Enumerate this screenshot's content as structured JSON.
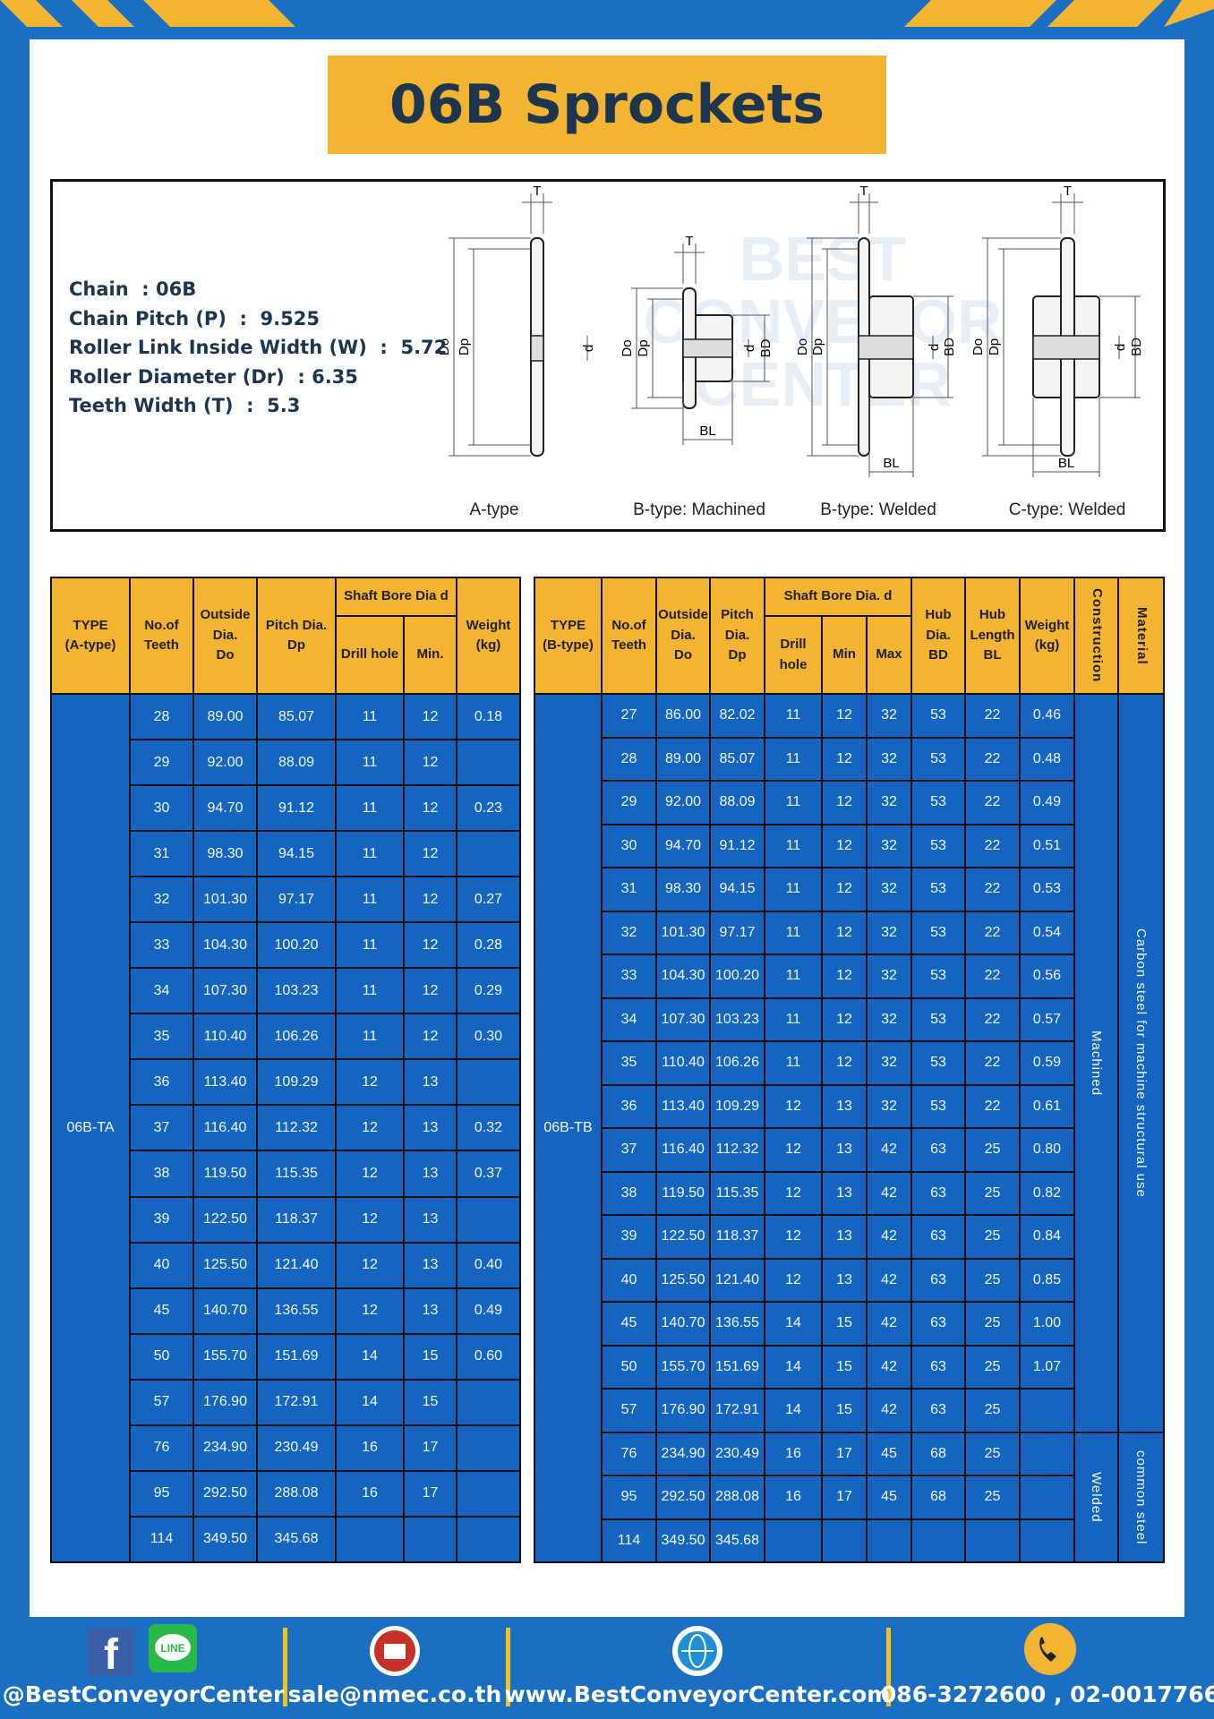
{
  "header": {
    "title": "06B Sprockets"
  },
  "specs": [
    "Chain  : 06B",
    "Chain Pitch (P)  :  9.525",
    "Roller Link Inside Width (W)  :  5.72",
    "Roller Diameter (Dr)  : 6.35",
    "Teeth Width (T)  :  5.3"
  ],
  "watermark": [
    "BEST",
    "CONVEYOR",
    "CENTER"
  ],
  "diagrams": [
    {
      "caption": "A-type",
      "labels": [
        "T",
        "Do",
        "Dp",
        "d"
      ]
    },
    {
      "caption": "B-type: Machined",
      "labels": [
        "T",
        "Do",
        "Dp",
        "d",
        "BD",
        "BL"
      ]
    },
    {
      "caption": "B-type: Welded",
      "labels": [
        "T",
        "Do",
        "Dp",
        "d",
        "BD",
        "BL"
      ]
    },
    {
      "caption": "C-type: Welded",
      "labels": [
        "T",
        "Do",
        "Dp",
        "d",
        "BD",
        "BL"
      ]
    }
  ],
  "table_a": {
    "columns": [
      [
        "TYPE",
        "(A-type)"
      ],
      [
        "No.of",
        "Teeth"
      ],
      [
        "Outside",
        "Dia.",
        "Do"
      ],
      [
        "Pitch Dia.",
        "Dp"
      ],
      [
        "Weight",
        "(kg)"
      ]
    ],
    "group": "Shaft Bore Dia d",
    "subcolumns": [
      "Drill hole",
      "Min."
    ],
    "type": "06B-TA",
    "rows": [
      [
        "28",
        "89.00",
        "85.07",
        "11",
        "12",
        "0.18"
      ],
      [
        "29",
        "92.00",
        "88.09",
        "11",
        "12",
        null
      ],
      [
        "30",
        "94.70",
        "91.12",
        "11",
        "12",
        "0.23"
      ],
      [
        "31",
        "98.30",
        "94.15",
        "11",
        "12",
        null
      ],
      [
        "32",
        "101.30",
        "97.17",
        "11",
        "12",
        "0.27"
      ],
      [
        "33",
        "104.30",
        "100.20",
        "11",
        "12",
        "0.28"
      ],
      [
        "34",
        "107.30",
        "103.23",
        "11",
        "12",
        "0.29"
      ],
      [
        "35",
        "110.40",
        "106.26",
        "11",
        "12",
        "0.30"
      ],
      [
        "36",
        "113.40",
        "109.29",
        "12",
        "13",
        null
      ],
      [
        "37",
        "116.40",
        "112.32",
        "12",
        "13",
        "0.32"
      ],
      [
        "38",
        "119.50",
        "115.35",
        "12",
        "13",
        "0.37"
      ],
      [
        "39",
        "122.50",
        "118.37",
        "12",
        "13",
        null
      ],
      [
        "40",
        "125.50",
        "121.40",
        "12",
        "13",
        "0.40"
      ],
      [
        "45",
        "140.70",
        "136.55",
        "12",
        "13",
        "0.49"
      ],
      [
        "50",
        "155.70",
        "151.69",
        "14",
        "15",
        "0.60"
      ],
      [
        "57",
        "176.90",
        "172.91",
        "14",
        "15",
        null
      ],
      [
        "76",
        "234.90",
        "230.49",
        "16",
        "17",
        null
      ],
      [
        "95",
        "292.50",
        "288.08",
        "16",
        "17",
        null
      ],
      [
        "114",
        "349.50",
        "345.68",
        null,
        null,
        null
      ]
    ]
  },
  "table_b": {
    "columns": [
      [
        "TYPE",
        "(B-type)"
      ],
      [
        "No.of",
        "Teeth"
      ],
      [
        "Outside",
        "Dia.",
        "Do"
      ],
      [
        "Pitch",
        "Dia.",
        "Dp"
      ],
      [
        "Hub",
        "Dia.",
        "BD"
      ],
      [
        "Hub",
        "Length",
        "BL"
      ],
      [
        "Weight",
        "(kg)"
      ],
      [
        "Construction"
      ],
      [
        "Material"
      ]
    ],
    "group": "Shaft Bore Dia. d",
    "subcolumns": [
      "Drill hole",
      "Min",
      "Max"
    ],
    "type": "06B-TB",
    "construction": [
      "Machined",
      "Welded"
    ],
    "material": [
      "Carbon steel for machine structural use",
      "common steel"
    ],
    "rows": [
      [
        "27",
        "86.00",
        "82.02",
        "11",
        "12",
        "32",
        "53",
        "22",
        "0.46"
      ],
      [
        "28",
        "89.00",
        "85.07",
        "11",
        "12",
        "32",
        "53",
        "22",
        "0.48"
      ],
      [
        "29",
        "92.00",
        "88.09",
        "11",
        "12",
        "32",
        "53",
        "22",
        "0.49"
      ],
      [
        "30",
        "94.70",
        "91.12",
        "11",
        "12",
        "32",
        "53",
        "22",
        "0.51"
      ],
      [
        "31",
        "98.30",
        "94.15",
        "11",
        "12",
        "32",
        "53",
        "22",
        "0.53"
      ],
      [
        "32",
        "101.30",
        "97.17",
        "11",
        "12",
        "32",
        "53",
        "22",
        "0.54"
      ],
      [
        "33",
        "104.30",
        "100.20",
        "11",
        "12",
        "32",
        "53",
        "22",
        "0.56"
      ],
      [
        "34",
        "107.30",
        "103.23",
        "11",
        "12",
        "32",
        "53",
        "22",
        "0.57"
      ],
      [
        "35",
        "110.40",
        "106.26",
        "11",
        "12",
        "32",
        "53",
        "22",
        "0.59"
      ],
      [
        "36",
        "113.40",
        "109.29",
        "12",
        "13",
        "32",
        "53",
        "22",
        "0.61"
      ],
      [
        "37",
        "116.40",
        "112.32",
        "12",
        "13",
        "42",
        "63",
        "25",
        "0.80"
      ],
      [
        "38",
        "119.50",
        "115.35",
        "12",
        "13",
        "42",
        "63",
        "25",
        "0.82"
      ],
      [
        "39",
        "122.50",
        "118.37",
        "12",
        "13",
        "42",
        "63",
        "25",
        "0.84"
      ],
      [
        "40",
        "125.50",
        "121.40",
        "12",
        "13",
        "42",
        "63",
        "25",
        "0.85"
      ],
      [
        "45",
        "140.70",
        "136.55",
        "14",
        "15",
        "42",
        "63",
        "25",
        "1.00"
      ],
      [
        "50",
        "155.70",
        "151.69",
        "14",
        "15",
        "42",
        "63",
        "25",
        "1.07"
      ],
      [
        "57",
        "176.90",
        "172.91",
        "14",
        "15",
        "42",
        "63",
        "25",
        null
      ],
      [
        "76",
        "234.90",
        "230.49",
        "16",
        "17",
        "45",
        "68",
        "25",
        null
      ],
      [
        "95",
        "292.50",
        "288.08",
        "16",
        "17",
        "45",
        "68",
        "25",
        null
      ],
      [
        "114",
        "349.50",
        "345.68",
        null,
        null,
        null,
        null,
        null,
        null
      ]
    ]
  },
  "footer": {
    "social_icons": [
      "f",
      "LINE"
    ],
    "social": "@BestConveyorCenter",
    "email": "sale@nmec.co.th",
    "website": "www.BestConveyorCenter.com",
    "phone": "086-3272600 , 02-0017766"
  }
}
